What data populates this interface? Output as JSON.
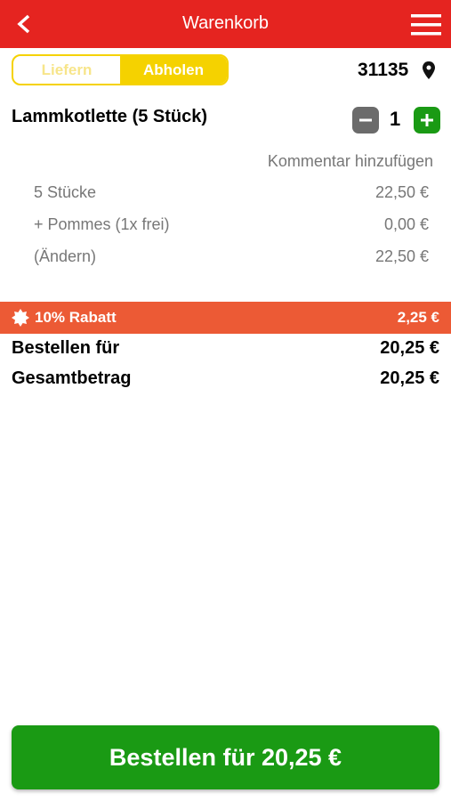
{
  "header": {
    "title": "Warenkorb"
  },
  "mode": {
    "options": [
      "Liefern",
      "Abholen"
    ],
    "postcode": "31135"
  },
  "item": {
    "name": "Lammkotlette (5 Stück)",
    "quantity": "1",
    "comment": "Kommentar hinzufügen",
    "lines": [
      [
        "5 Stücke",
        "22,50 €"
      ],
      [
        "+ Pommes (1x frei)",
        "0,00 €"
      ],
      [
        "(Ändern)",
        "22,50 €"
      ]
    ]
  },
  "discount": {
    "label": "10% Rabatt",
    "amount": "2,25 €"
  },
  "totals": [
    [
      "Bestellen für",
      "20,25 €"
    ],
    [
      "Gesamtbetrag",
      "20,25 €"
    ]
  ],
  "order_button": "Bestellen für 20,25 €"
}
